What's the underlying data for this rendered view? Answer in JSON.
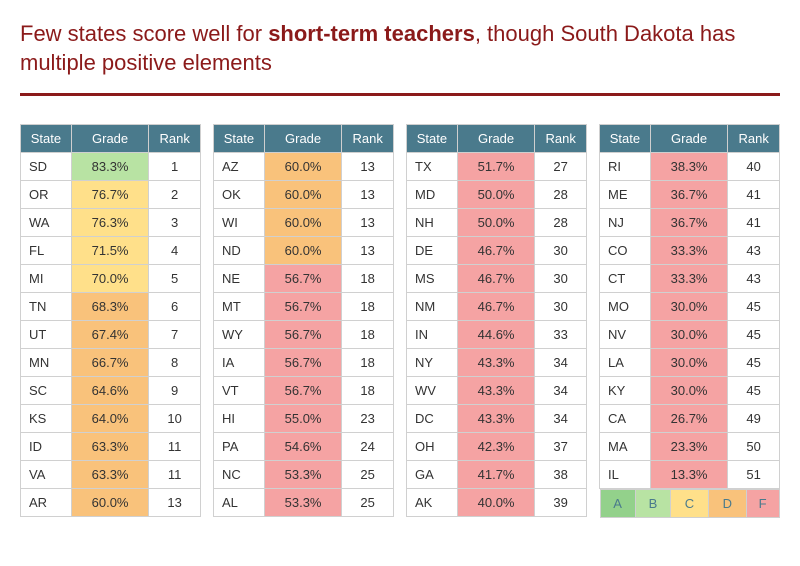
{
  "title_prefix": "Few states score well for ",
  "title_bold": "short-term teachers",
  "title_suffix": ", though South Dakota has multiple positive elements",
  "colors": {
    "title": "#8b1a1a",
    "rule": "#8b1a1a",
    "header_bg": "#4a7a8c",
    "header_fg": "#ffffff",
    "border": "#d0d0d0",
    "cell_bg": "#ffffff",
    "text": "#333333"
  },
  "grade_colors": {
    "A": "#93d18b",
    "B": "#b8e3a3",
    "C": "#ffe08a",
    "D": "#f9c27b",
    "F": "#f5a3a3"
  },
  "headers": {
    "state": "State",
    "grade": "Grade",
    "rank": "Rank"
  },
  "legend": [
    "A",
    "B",
    "C",
    "D",
    "F"
  ],
  "columns": [
    [
      {
        "s": "SD",
        "g": "83.3%",
        "r": "1",
        "c": "B"
      },
      {
        "s": "OR",
        "g": "76.7%",
        "r": "2",
        "c": "C"
      },
      {
        "s": "WA",
        "g": "76.3%",
        "r": "3",
        "c": "C"
      },
      {
        "s": "FL",
        "g": "71.5%",
        "r": "4",
        "c": "C"
      },
      {
        "s": "MI",
        "g": "70.0%",
        "r": "5",
        "c": "C"
      },
      {
        "s": "TN",
        "g": "68.3%",
        "r": "6",
        "c": "D"
      },
      {
        "s": "UT",
        "g": "67.4%",
        "r": "7",
        "c": "D"
      },
      {
        "s": "MN",
        "g": "66.7%",
        "r": "8",
        "c": "D"
      },
      {
        "s": "SC",
        "g": "64.6%",
        "r": "9",
        "c": "D"
      },
      {
        "s": "KS",
        "g": "64.0%",
        "r": "10",
        "c": "D"
      },
      {
        "s": "ID",
        "g": "63.3%",
        "r": "11",
        "c": "D"
      },
      {
        "s": "VA",
        "g": "63.3%",
        "r": "11",
        "c": "D"
      },
      {
        "s": "AR",
        "g": "60.0%",
        "r": "13",
        "c": "D"
      }
    ],
    [
      {
        "s": "AZ",
        "g": "60.0%",
        "r": "13",
        "c": "D"
      },
      {
        "s": "OK",
        "g": "60.0%",
        "r": "13",
        "c": "D"
      },
      {
        "s": "WI",
        "g": "60.0%",
        "r": "13",
        "c": "D"
      },
      {
        "s": "ND",
        "g": "60.0%",
        "r": "13",
        "c": "D"
      },
      {
        "s": "NE",
        "g": "56.7%",
        "r": "18",
        "c": "F"
      },
      {
        "s": "MT",
        "g": "56.7%",
        "r": "18",
        "c": "F"
      },
      {
        "s": "WY",
        "g": "56.7%",
        "r": "18",
        "c": "F"
      },
      {
        "s": "IA",
        "g": "56.7%",
        "r": "18",
        "c": "F"
      },
      {
        "s": "VT",
        "g": "56.7%",
        "r": "18",
        "c": "F"
      },
      {
        "s": "HI",
        "g": "55.0%",
        "r": "23",
        "c": "F"
      },
      {
        "s": "PA",
        "g": "54.6%",
        "r": "24",
        "c": "F"
      },
      {
        "s": "NC",
        "g": "53.3%",
        "r": "25",
        "c": "F"
      },
      {
        "s": "AL",
        "g": "53.3%",
        "r": "25",
        "c": "F"
      }
    ],
    [
      {
        "s": "TX",
        "g": "51.7%",
        "r": "27",
        "c": "F"
      },
      {
        "s": "MD",
        "g": "50.0%",
        "r": "28",
        "c": "F"
      },
      {
        "s": "NH",
        "g": "50.0%",
        "r": "28",
        "c": "F"
      },
      {
        "s": "DE",
        "g": "46.7%",
        "r": "30",
        "c": "F"
      },
      {
        "s": "MS",
        "g": "46.7%",
        "r": "30",
        "c": "F"
      },
      {
        "s": "NM",
        "g": "46.7%",
        "r": "30",
        "c": "F"
      },
      {
        "s": "IN",
        "g": "44.6%",
        "r": "33",
        "c": "F"
      },
      {
        "s": "NY",
        "g": "43.3%",
        "r": "34",
        "c": "F"
      },
      {
        "s": "WV",
        "g": "43.3%",
        "r": "34",
        "c": "F"
      },
      {
        "s": "DC",
        "g": "43.3%",
        "r": "34",
        "c": "F"
      },
      {
        "s": "OH",
        "g": "42.3%",
        "r": "37",
        "c": "F"
      },
      {
        "s": "GA",
        "g": "41.7%",
        "r": "38",
        "c": "F"
      },
      {
        "s": "AK",
        "g": "40.0%",
        "r": "39",
        "c": "F"
      }
    ],
    [
      {
        "s": "RI",
        "g": "38.3%",
        "r": "40",
        "c": "F"
      },
      {
        "s": "ME",
        "g": "36.7%",
        "r": "41",
        "c": "F"
      },
      {
        "s": "NJ",
        "g": "36.7%",
        "r": "41",
        "c": "F"
      },
      {
        "s": "CO",
        "g": "33.3%",
        "r": "43",
        "c": "F"
      },
      {
        "s": "CT",
        "g": "33.3%",
        "r": "43",
        "c": "F"
      },
      {
        "s": "MO",
        "g": "30.0%",
        "r": "45",
        "c": "F"
      },
      {
        "s": "NV",
        "g": "30.0%",
        "r": "45",
        "c": "F"
      },
      {
        "s": "LA",
        "g": "30.0%",
        "r": "45",
        "c": "F"
      },
      {
        "s": "KY",
        "g": "30.0%",
        "r": "45",
        "c": "F"
      },
      {
        "s": "CA",
        "g": "26.7%",
        "r": "49",
        "c": "F"
      },
      {
        "s": "MA",
        "g": "23.3%",
        "r": "50",
        "c": "F"
      },
      {
        "s": "IL",
        "g": "13.3%",
        "r": "51",
        "c": "F"
      }
    ]
  ]
}
